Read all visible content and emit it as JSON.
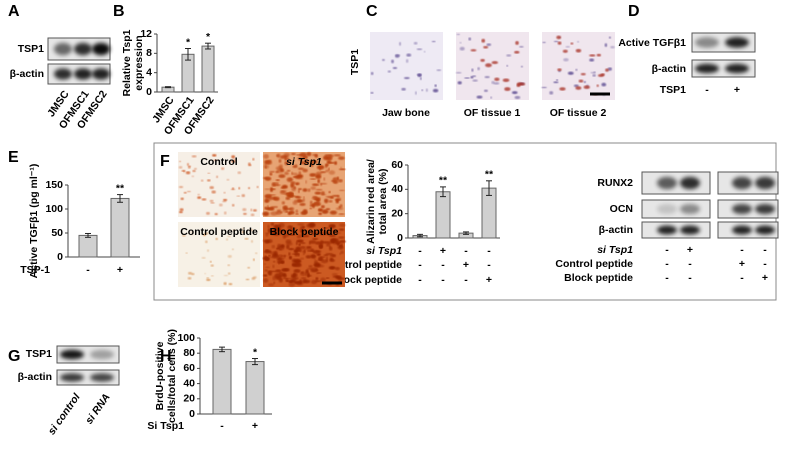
{
  "chart_data": [
    {
      "type": "bar",
      "ylabel": [
        "Relative Tsp1",
        "expression"
      ],
      "categories": [
        "JMSC",
        "OFMSC1",
        "OFMSC2"
      ],
      "values": [
        1,
        7.8,
        9.5
      ],
      "errors": [
        0.1,
        1.2,
        0.6
      ],
      "significance": [
        null,
        "*",
        "*"
      ],
      "color": "#d0d0d0",
      "ylim": [
        0,
        12
      ],
      "yticks": [
        0,
        4,
        8,
        12
      ]
    },
    {
      "type": "bar",
      "ylabel": [
        "Active TGFβ1 (pg ml⁻¹)"
      ],
      "xlabel": "TSP-1",
      "categories": [
        "-",
        "+"
      ],
      "values": [
        45,
        122
      ],
      "errors": [
        4,
        8
      ],
      "significance": [
        null,
        "**"
      ],
      "color": "#d0d0d0",
      "ylim": [
        0,
        150
      ],
      "yticks": [
        0,
        50,
        100,
        150
      ]
    },
    {
      "type": "bar",
      "ylabel": [
        "Alizarin red area/",
        "total area (%)"
      ],
      "conditions": [
        {
          "name": "si Tsp1",
          "marks": [
            "-",
            "+",
            "-",
            "-"
          ]
        },
        {
          "name": "Control peptide",
          "marks": [
            "-",
            "-",
            "+",
            "-"
          ]
        },
        {
          "name": "Block peptide",
          "marks": [
            "-",
            "-",
            "-",
            "+"
          ]
        }
      ],
      "values": [
        2,
        38,
        4,
        41
      ],
      "errors": [
        1,
        4,
        1,
        6
      ],
      "significance": [
        null,
        "**",
        null,
        "**"
      ],
      "color": "#d0d0d0",
      "ylim": [
        0,
        60
      ],
      "yticks": [
        0,
        20,
        40,
        60
      ]
    },
    {
      "type": "bar",
      "ylabel": [
        "BrdU-positive",
        "cells/total cells (%)"
      ],
      "xlabel": "Si Tsp1",
      "categories": [
        "-",
        "+"
      ],
      "values": [
        85,
        69
      ],
      "errors": [
        3,
        4
      ],
      "significance": [
        null,
        "*"
      ],
      "color": "#d0d0d0",
      "ylim": [
        0,
        100
      ],
      "yticks": [
        0,
        20,
        40,
        60,
        80,
        100
      ]
    }
  ],
  "figure": {
    "panel_labels": [
      "A",
      "B",
      "C",
      "D",
      "E",
      "F",
      "G",
      "H"
    ],
    "blot_a": {
      "rows": [
        "TSP1",
        "β-actin"
      ],
      "lanes": [
        "JMSC",
        "OFMSC1",
        "OFMSC2"
      ]
    },
    "stain_c": {
      "marker": "TSP1",
      "captions": [
        "Jaw bone",
        "OF tissue 1",
        "OF tissue 2"
      ]
    },
    "blot_d": {
      "rows": [
        "Active TGFβ1",
        "β-actin"
      ],
      "treatment": "TSP1",
      "lanes": [
        "-",
        "+"
      ]
    },
    "stain_f": {
      "captions": [
        "Control",
        "si Tsp1",
        "Control peptide",
        "Block peptide"
      ]
    },
    "blot_f": {
      "rows": [
        "RUNX2",
        "OCN",
        "β-actin"
      ],
      "conditions": [
        {
          "name": "si Tsp1",
          "marks": [
            "-",
            "+",
            "-",
            "-"
          ]
        },
        {
          "name": "Control peptide",
          "marks": [
            "-",
            "-",
            "+",
            "-"
          ]
        },
        {
          "name": "Block peptide",
          "marks": [
            "-",
            "-",
            "-",
            "+"
          ]
        }
      ]
    },
    "blot_g": {
      "rows": [
        "TSP1",
        "β-actin"
      ],
      "lanes": [
        "si control",
        "si RNA"
      ]
    }
  }
}
